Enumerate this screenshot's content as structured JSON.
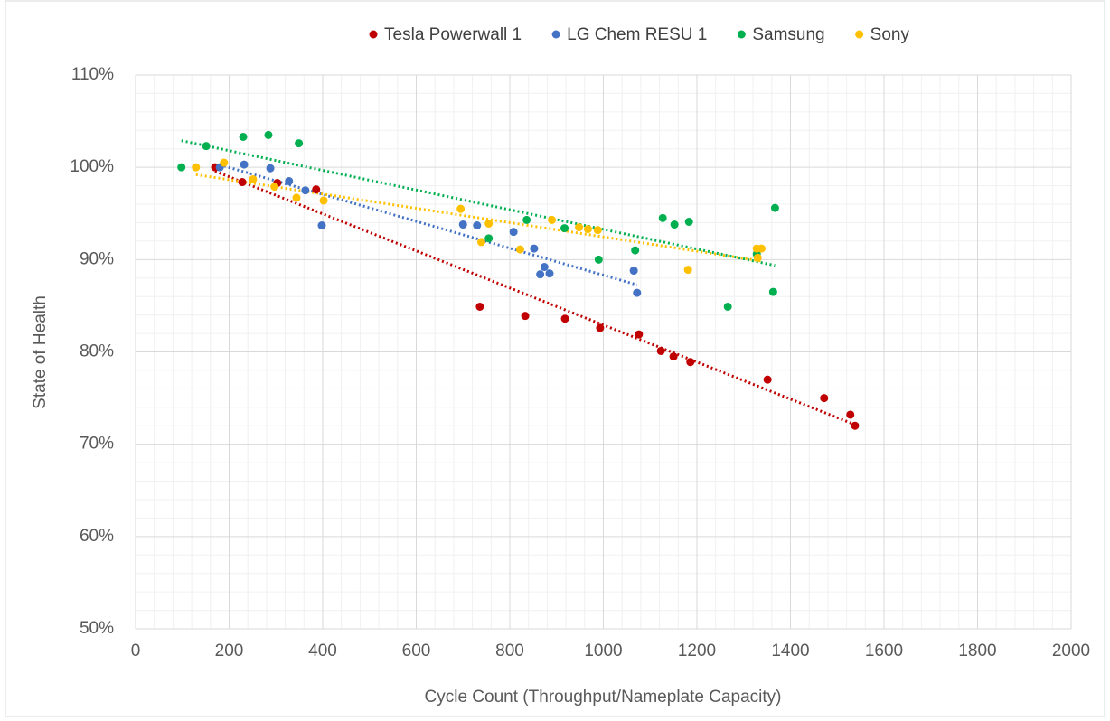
{
  "chart_data": {
    "type": "scatter",
    "xlabel": "Cycle Count (Throughput/Nameplate  Capacity)",
    "ylabel": "State of Health",
    "xlim": [
      0,
      2000
    ],
    "xticks": [
      0,
      200,
      400,
      600,
      800,
      1000,
      1200,
      1400,
      1600,
      1800,
      2000
    ],
    "ylim": [
      50,
      110
    ],
    "yticks": [
      {
        "value": 50,
        "label": "50%"
      },
      {
        "value": 60,
        "label": "60%"
      },
      {
        "value": 70,
        "label": "70%"
      },
      {
        "value": 80,
        "label": "80%"
      },
      {
        "value": 90,
        "label": "90%"
      },
      {
        "value": 100,
        "label": "100%"
      },
      {
        "value": 110,
        "label": "110%"
      }
    ],
    "grid": true,
    "minor_divisions": 5,
    "legend": "top",
    "trendline": "linear",
    "series": [
      {
        "name": "Tesla Powerwall 1",
        "color": "#c00000",
        "x": [
          170,
          228,
          303,
          386,
          736,
          833,
          918,
          993,
          1076,
          1123,
          1150,
          1186,
          1351,
          1472,
          1528,
          1538
        ],
        "values": [
          100.0,
          98.4,
          98.3,
          97.6,
          84.9,
          83.9,
          83.6,
          82.6,
          81.9,
          80.1,
          79.5,
          78.9,
          77.0,
          75.0,
          73.2,
          72.0
        ]
      },
      {
        "name": "LG Chem RESU 1",
        "color": "#4472c4",
        "x": [
          180,
          232,
          288,
          328,
          363,
          398,
          700,
          730,
          808,
          852,
          865,
          874,
          885,
          1065,
          1072
        ],
        "values": [
          100.0,
          100.3,
          99.9,
          98.5,
          97.5,
          93.7,
          93.8,
          93.7,
          93.0,
          91.2,
          88.4,
          89.2,
          88.5,
          88.8,
          86.4
        ]
      },
      {
        "name": "Samsung",
        "color": "#00b050",
        "x": [
          98,
          151,
          230,
          284,
          349,
          755,
          836,
          917,
          990,
          1068,
          1127,
          1152,
          1183,
          1266,
          1328,
          1363,
          1367
        ],
        "values": [
          100.0,
          102.3,
          103.3,
          103.5,
          102.6,
          92.3,
          94.3,
          93.4,
          90.0,
          91.0,
          94.5,
          93.8,
          94.1,
          84.9,
          90.6,
          86.5,
          95.6
        ]
      },
      {
        "name": "Sony",
        "color": "#ffc000",
        "x": [
          129,
          189,
          251,
          297,
          344,
          402,
          695,
          739,
          755,
          822,
          890,
          948,
          967,
          988,
          1181,
          1330,
          1328,
          1338
        ],
        "values": [
          100.0,
          100.5,
          98.7,
          97.9,
          96.7,
          96.4,
          95.5,
          91.9,
          93.9,
          91.1,
          94.3,
          93.5,
          93.3,
          93.2,
          88.9,
          90.2,
          91.2,
          91.2
        ]
      }
    ]
  }
}
